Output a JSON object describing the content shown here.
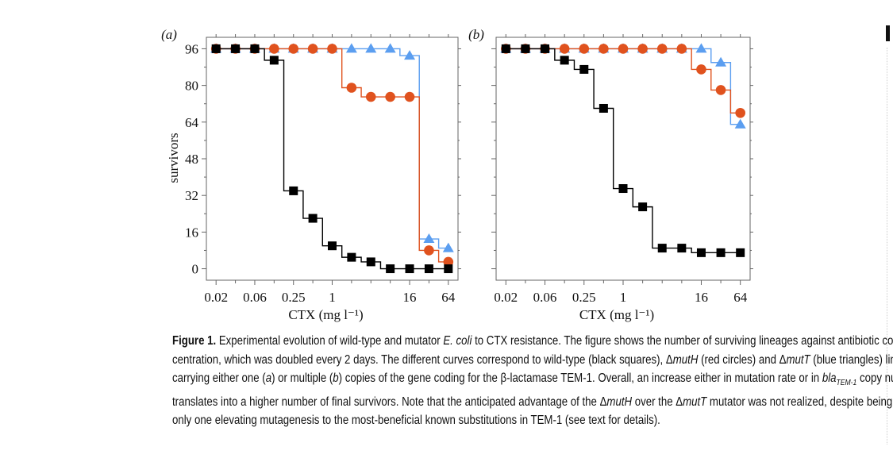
{
  "chart_data": [
    {
      "type": "line",
      "panel_label": "(a)",
      "xlabel": "CTX (mg l⁻¹)",
      "ylabel": "survivors",
      "x_tick_labels": [
        "0.02",
        "0.06",
        "0.25",
        "1",
        "16",
        "64"
      ],
      "x_tick_positions": [
        0,
        2,
        4,
        6,
        10,
        12
      ],
      "y_tick_labels": [
        "0",
        "16",
        "32",
        "48",
        "64",
        "80",
        "96"
      ],
      "y_ticks": [
        0,
        16,
        32,
        48,
        64,
        80,
        96
      ],
      "x_range": [
        -0.5,
        12.5
      ],
      "ylim": [
        -5,
        101
      ],
      "x_steps": [
        0,
        1,
        2,
        3,
        4,
        5,
        6,
        7,
        8,
        9,
        10,
        11,
        12
      ],
      "series": [
        {
          "name": "wild-type",
          "marker": "square",
          "color": "#000000",
          "values": [
            96,
            96,
            96,
            91,
            34,
            22,
            10,
            5,
            3,
            0,
            0,
            0,
            0
          ]
        },
        {
          "name": "mutH",
          "marker": "circle",
          "color": "#e0521e",
          "values": [
            96,
            96,
            96,
            96,
            96,
            96,
            96,
            79,
            75,
            75,
            75,
            8,
            3
          ]
        },
        {
          "name": "mutT",
          "marker": "triangle",
          "color": "#5b9ef0",
          "values": [
            96,
            96,
            96,
            96,
            96,
            96,
            96,
            96,
            96,
            96,
            93,
            13,
            9
          ]
        }
      ]
    },
    {
      "type": "line",
      "panel_label": "(b)",
      "xlabel": "CTX (mg l⁻¹)",
      "ylabel": "survivors",
      "x_tick_labels": [
        "0.02",
        "0.06",
        "0.25",
        "1",
        "16",
        "64"
      ],
      "x_tick_positions": [
        0,
        2,
        4,
        6,
        10,
        12
      ],
      "y_tick_labels": [],
      "y_ticks": [
        0,
        16,
        32,
        48,
        64,
        80,
        96
      ],
      "x_range": [
        -0.5,
        12.5
      ],
      "ylim": [
        -5,
        101
      ],
      "x_steps": [
        0,
        1,
        2,
        3,
        4,
        5,
        6,
        7,
        8,
        9,
        10,
        11,
        12
      ],
      "series": [
        {
          "name": "wild-type",
          "marker": "square",
          "color": "#000000",
          "values": [
            96,
            96,
            96,
            91,
            87,
            70,
            35,
            27,
            9,
            9,
            7,
            7,
            7
          ]
        },
        {
          "name": "mutH",
          "marker": "circle",
          "color": "#e0521e",
          "values": [
            96,
            96,
            96,
            96,
            96,
            96,
            96,
            96,
            96,
            96,
            87,
            78,
            68
          ]
        },
        {
          "name": "mutT",
          "marker": "triangle",
          "color": "#5b9ef0",
          "values": [
            96,
            96,
            96,
            96,
            96,
            96,
            96,
            96,
            96,
            96,
            96,
            90,
            63
          ]
        }
      ]
    }
  ],
  "caption": {
    "label": "Figure 1.",
    "line1_a": " Experimental evolution of wild-type and mutator ",
    "line1_species": "E. coli",
    "line1_b": " to CTX resistance. The figure shows the number of surviving lineages against antibiotic con-",
    "line2": "centration, which was doubled every 2 days. The different curves correspond to wild-type (black squares), Δ",
    "line2_muth": "mutH",
    "line2_b": " (red circles) and Δ",
    "line2_mutt": "mutT",
    "line2_c": " (blue triangles) lineages;",
    "line3_a": "carrying either one (",
    "line3_pa": "a",
    "line3_b": ") or multiple (",
    "line3_pb": "b",
    "line3_c": ") copies of the gene coding for the β-lactamase TEM-1. Overall, an increase either in mutation rate or in ",
    "line3_gene": "bla",
    "line3_sub": "TEM-1",
    "line3_d": " copy number",
    "line4_a": "translates into a higher number of final survivors. Note that the anticipated advantage of the Δ",
    "line4_muth": "mutH",
    "line4_b": " over the Δ",
    "line4_mutt": "mutT",
    "line4_c": " mutator was not realized, despite being the",
    "line5": "only one elevating mutagenesis to the most-beneficial known substitutions in TEM-1 (see text for details)."
  }
}
